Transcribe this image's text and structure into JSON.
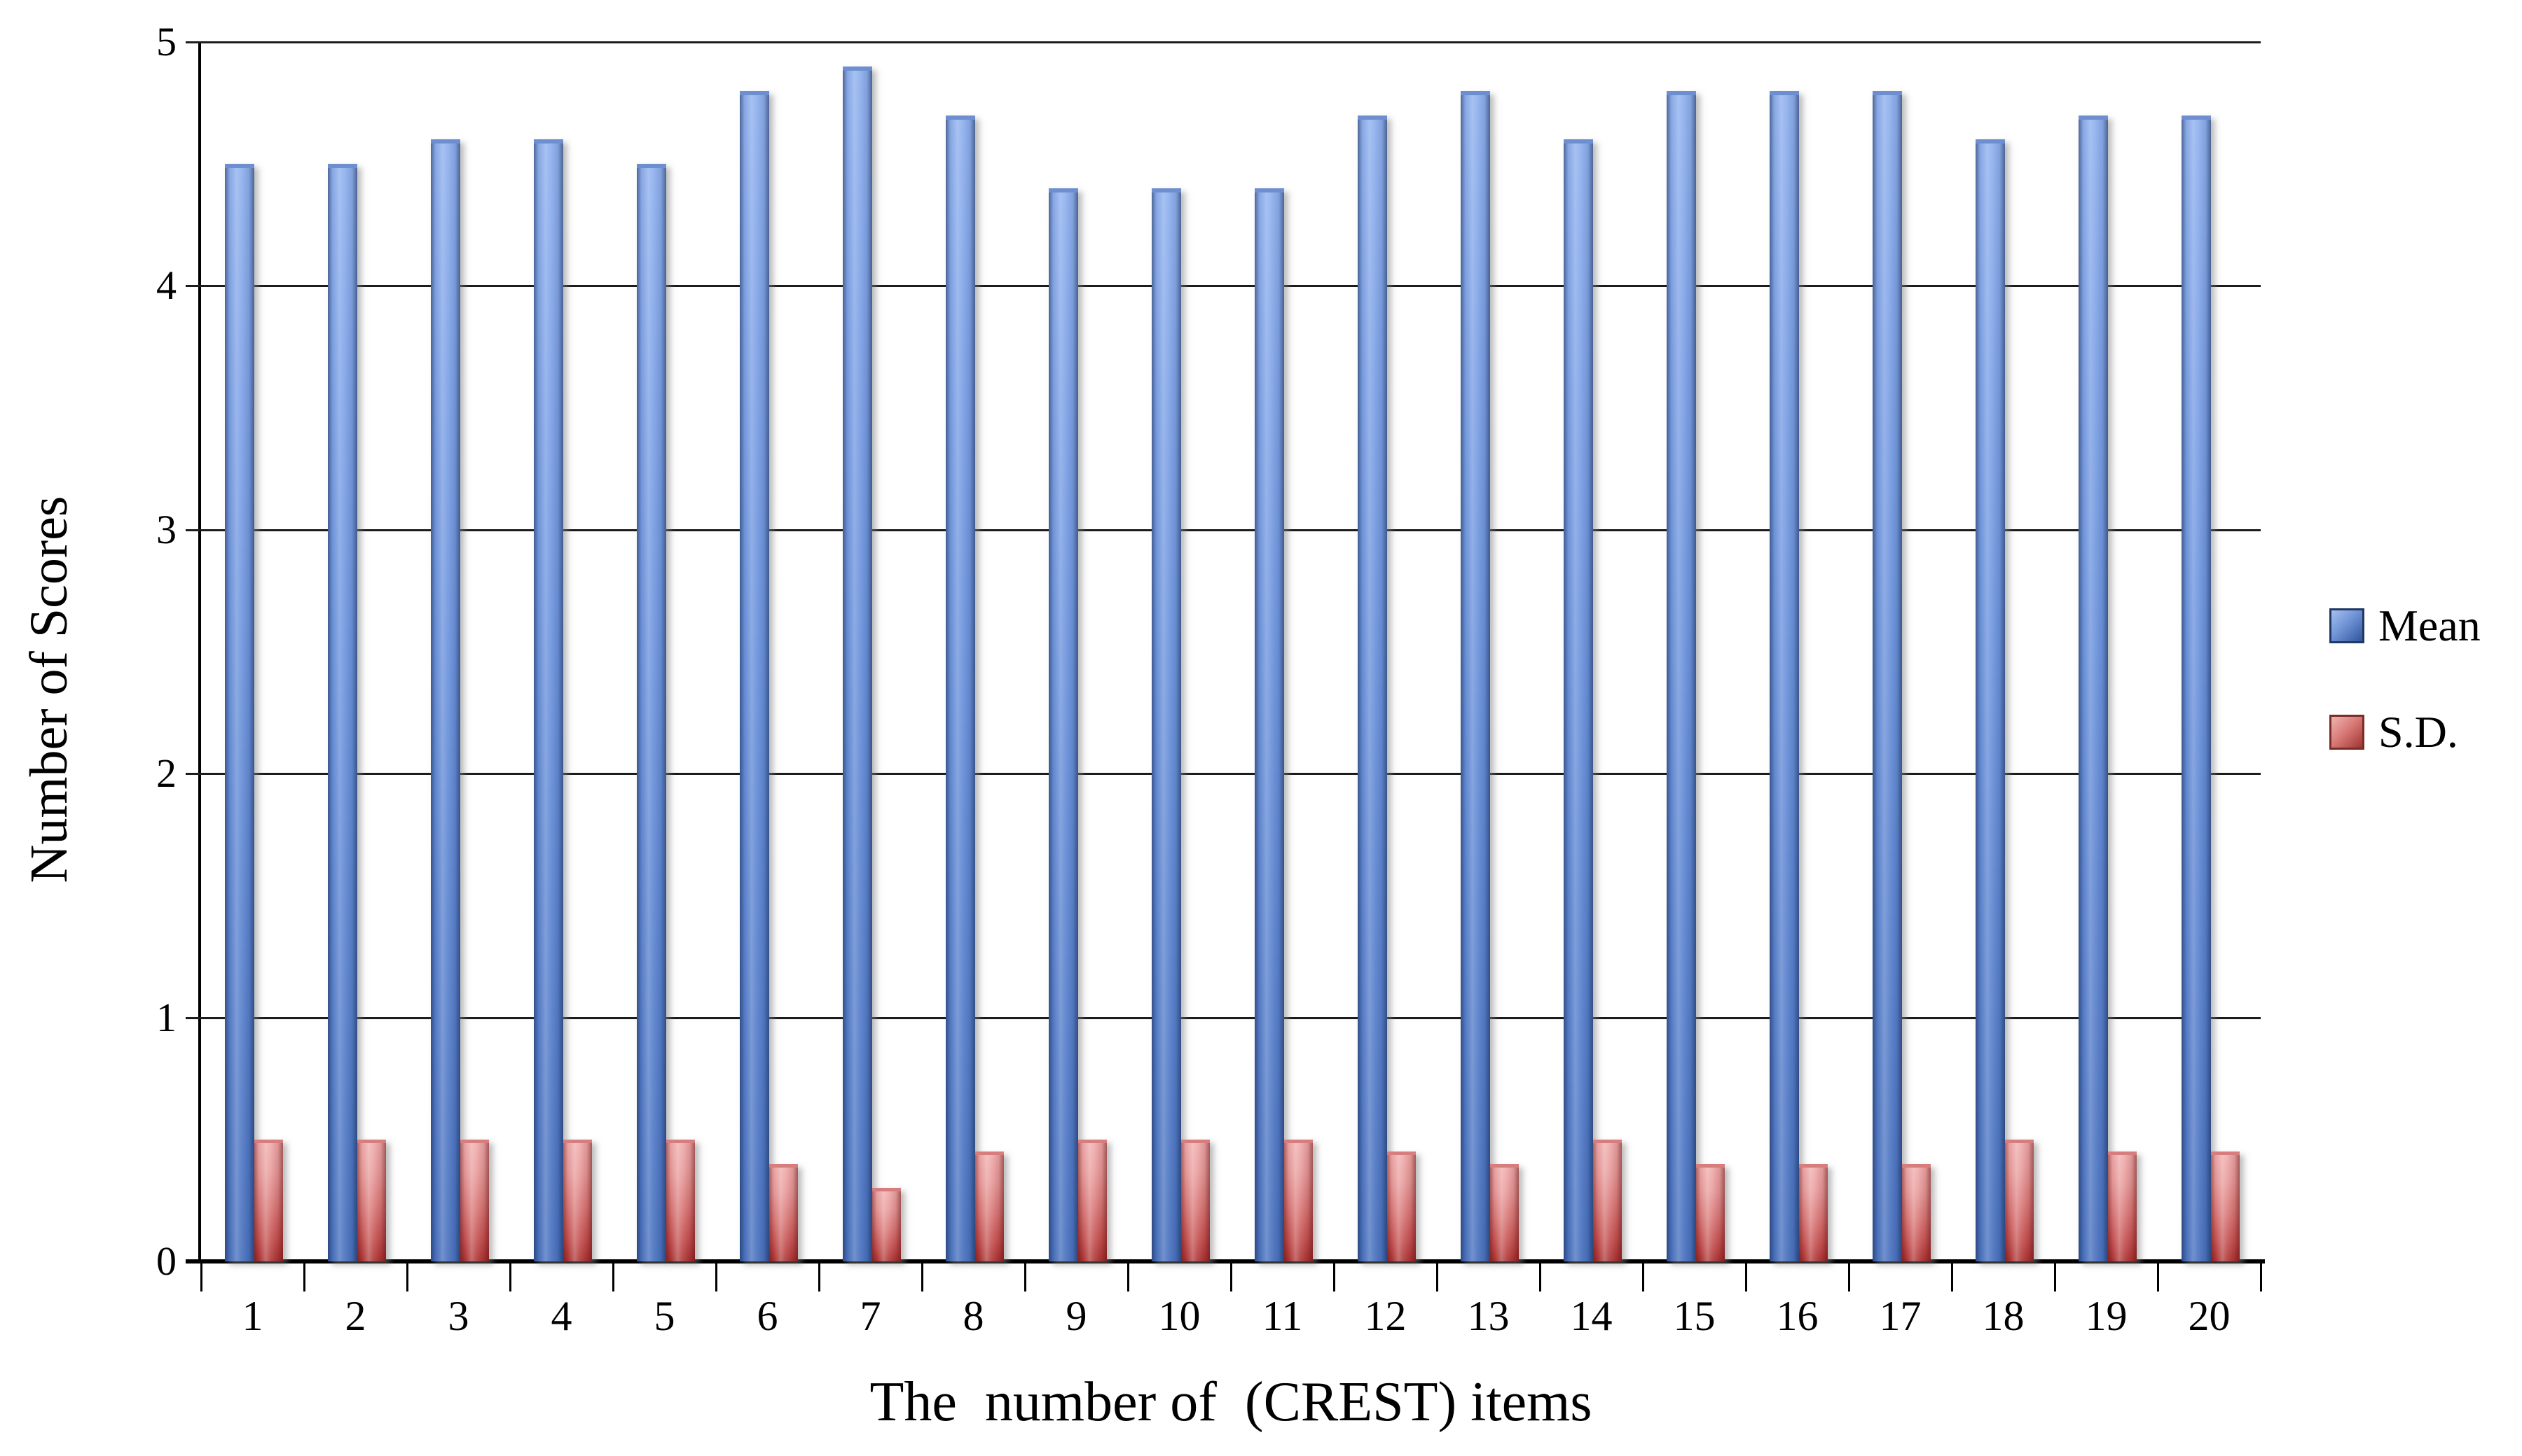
{
  "chart_data": {
    "type": "bar",
    "categories": [
      "1",
      "2",
      "3",
      "4",
      "5",
      "6",
      "7",
      "8",
      "9",
      "10",
      "11",
      "12",
      "13",
      "14",
      "15",
      "16",
      "17",
      "18",
      "19",
      "20"
    ],
    "series": [
      {
        "name": "Mean",
        "color": "#6d94dd",
        "values": [
          4.5,
          4.5,
          4.6,
          4.6,
          4.5,
          4.8,
          4.9,
          4.7,
          4.4,
          4.4,
          4.4,
          4.7,
          4.8,
          4.6,
          4.8,
          4.8,
          4.8,
          4.6,
          4.7,
          4.7
        ]
      },
      {
        "name": "S.D.",
        "color": "#d97676",
        "values": [
          0.5,
          0.5,
          0.5,
          0.5,
          0.5,
          0.4,
          0.3,
          0.45,
          0.5,
          0.5,
          0.5,
          0.45,
          0.4,
          0.5,
          0.4,
          0.4,
          0.4,
          0.5,
          0.45,
          0.45
        ]
      }
    ],
    "xlabel": "The  number of  (CREST) items",
    "ylabel": "Number of Scores",
    "ylim": [
      0,
      5
    ],
    "yticks": [
      "0",
      "1",
      "2",
      "3",
      "4",
      "5"
    ],
    "grid": true,
    "legend_position": "right",
    "legend": [
      {
        "label": "Mean",
        "color": "#4F7BC7"
      },
      {
        "label": "S.D.",
        "color": "#C0504D"
      }
    ]
  }
}
